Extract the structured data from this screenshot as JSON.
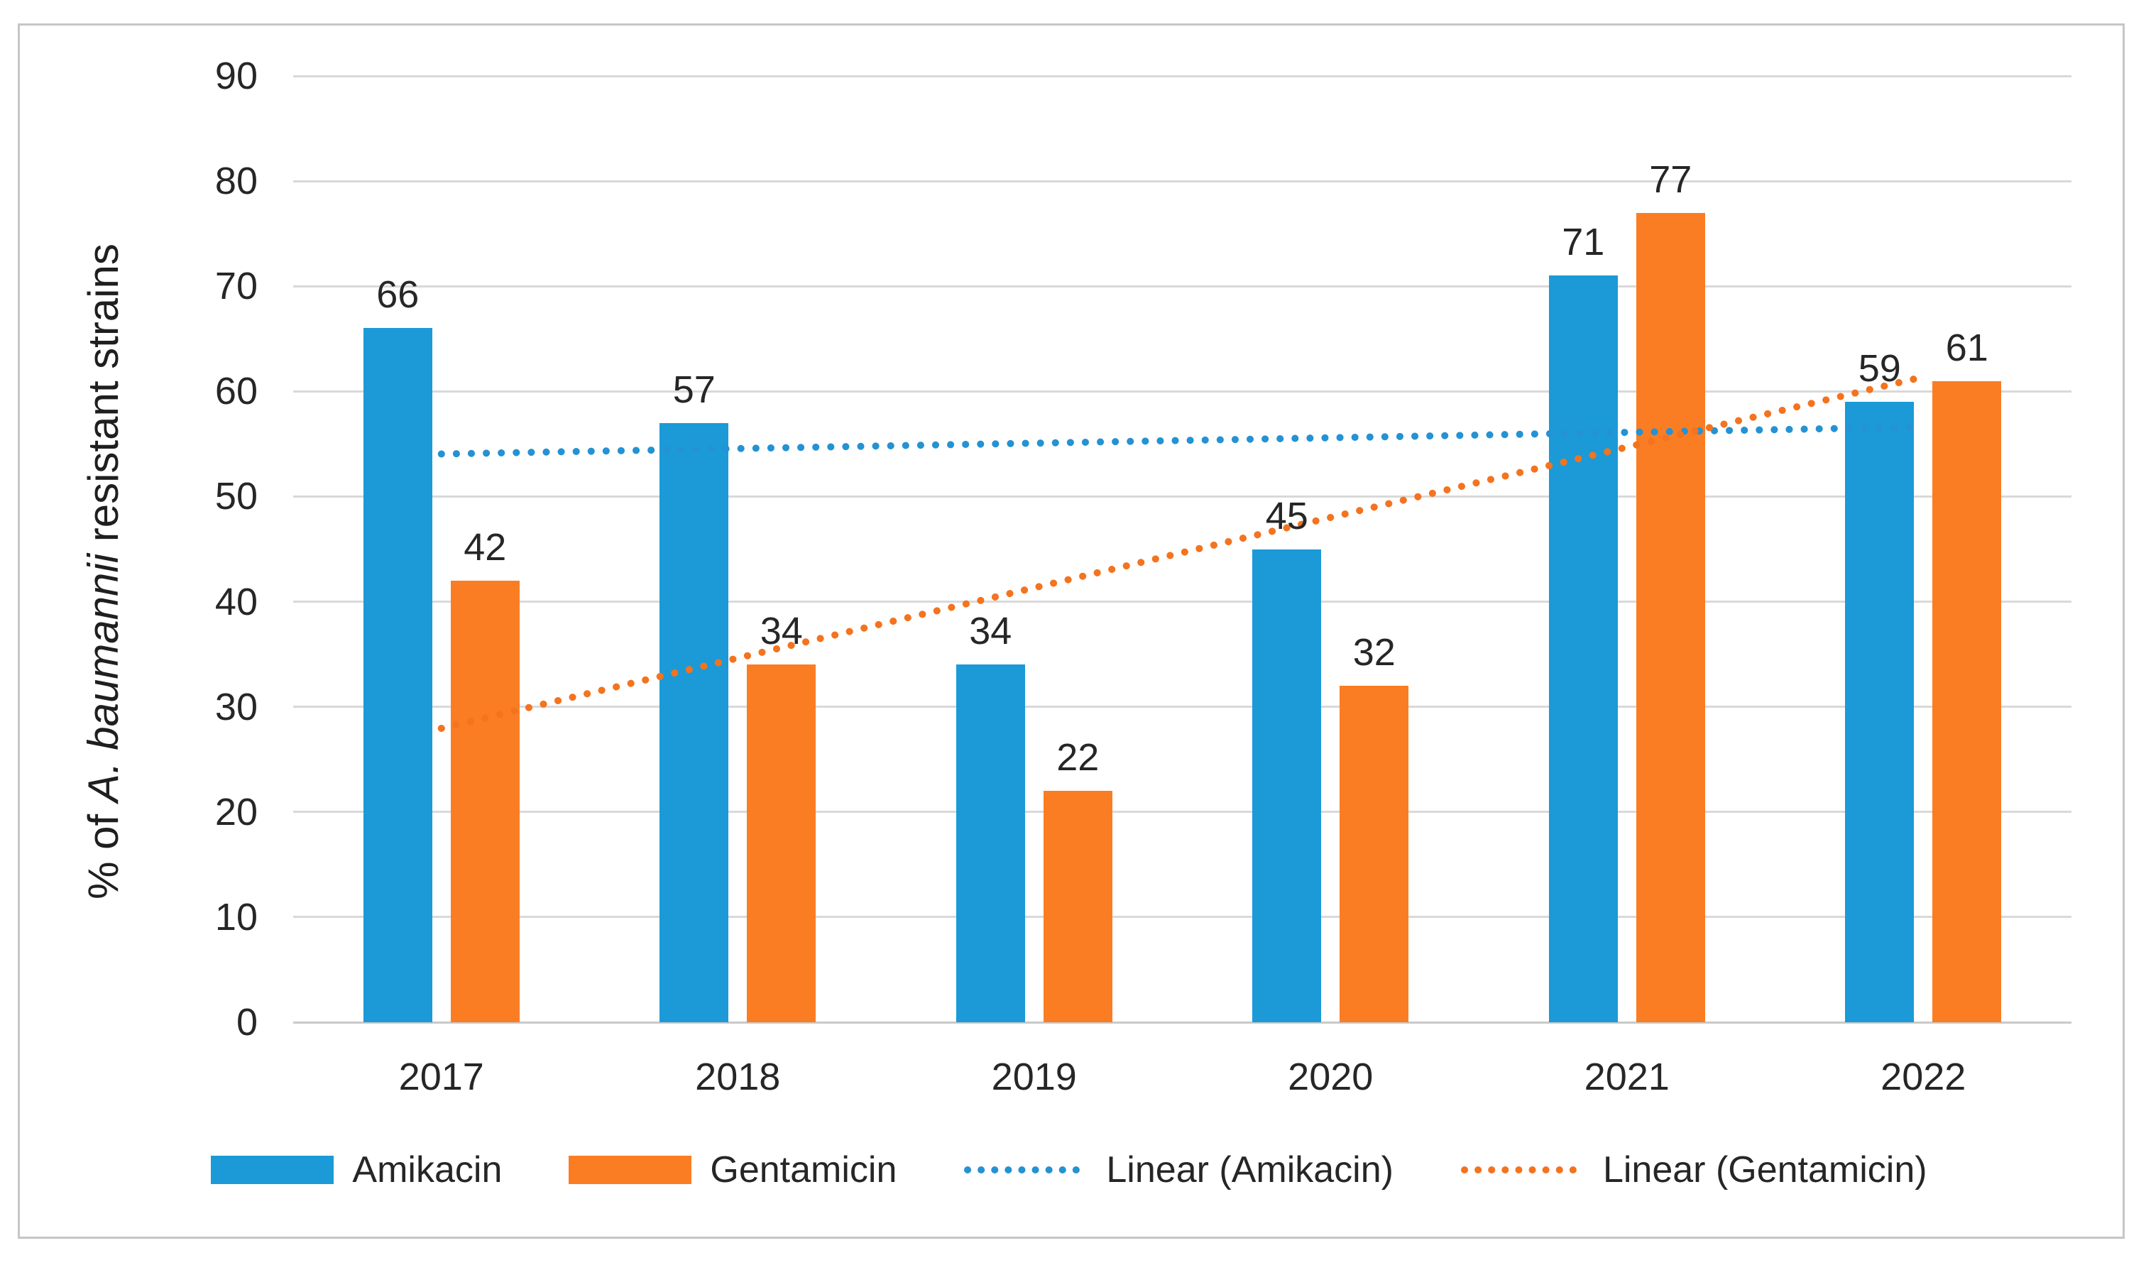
{
  "chart_data": {
    "type": "bar",
    "title": "",
    "categories": [
      "2017",
      "2018",
      "2019",
      "2020",
      "2021",
      "2022"
    ],
    "series": [
      {
        "name": "Amikacin",
        "color": "#1b9ad7",
        "values": [
          66,
          57,
          34,
          45,
          71,
          59
        ]
      },
      {
        "name": "Gentamicin",
        "color": "#fb7d23",
        "values": [
          42,
          34,
          22,
          32,
          77,
          61
        ]
      }
    ],
    "trendlines": [
      {
        "name": "Linear (Amikacin)",
        "series": "Amikacin",
        "color": "#2492d3",
        "style": "dotted"
      },
      {
        "name": "Linear (Gentamicin)",
        "series": "Gentamicin",
        "color": "#f4731e",
        "style": "dotted"
      }
    ],
    "data_labels": [
      [
        66,
        57,
        34,
        45,
        71,
        59
      ],
      [
        42,
        34,
        22,
        32,
        77,
        61
      ]
    ],
    "xlabel": "",
    "ylabel": "% of A. baumannii resistant strains",
    "ylabel_parts": {
      "prefix": "% of ",
      "italic": "A. baumannii",
      "suffix": " resistant strains"
    },
    "ylim": [
      0,
      90
    ],
    "yticks": [
      0,
      10,
      20,
      30,
      40,
      50,
      60,
      70,
      80,
      90
    ],
    "grid": true,
    "legend_position": "bottom",
    "legend": [
      "Amikacin",
      "Gentamicin",
      "Linear (Amikacin)",
      "Linear (Gentamicin)"
    ]
  },
  "style_colors": {
    "gridline": "#d9d9d9",
    "axis_line": "#c9c9c9",
    "text": "#262626",
    "border": "#c6c6c6",
    "background": "#ffffff"
  }
}
